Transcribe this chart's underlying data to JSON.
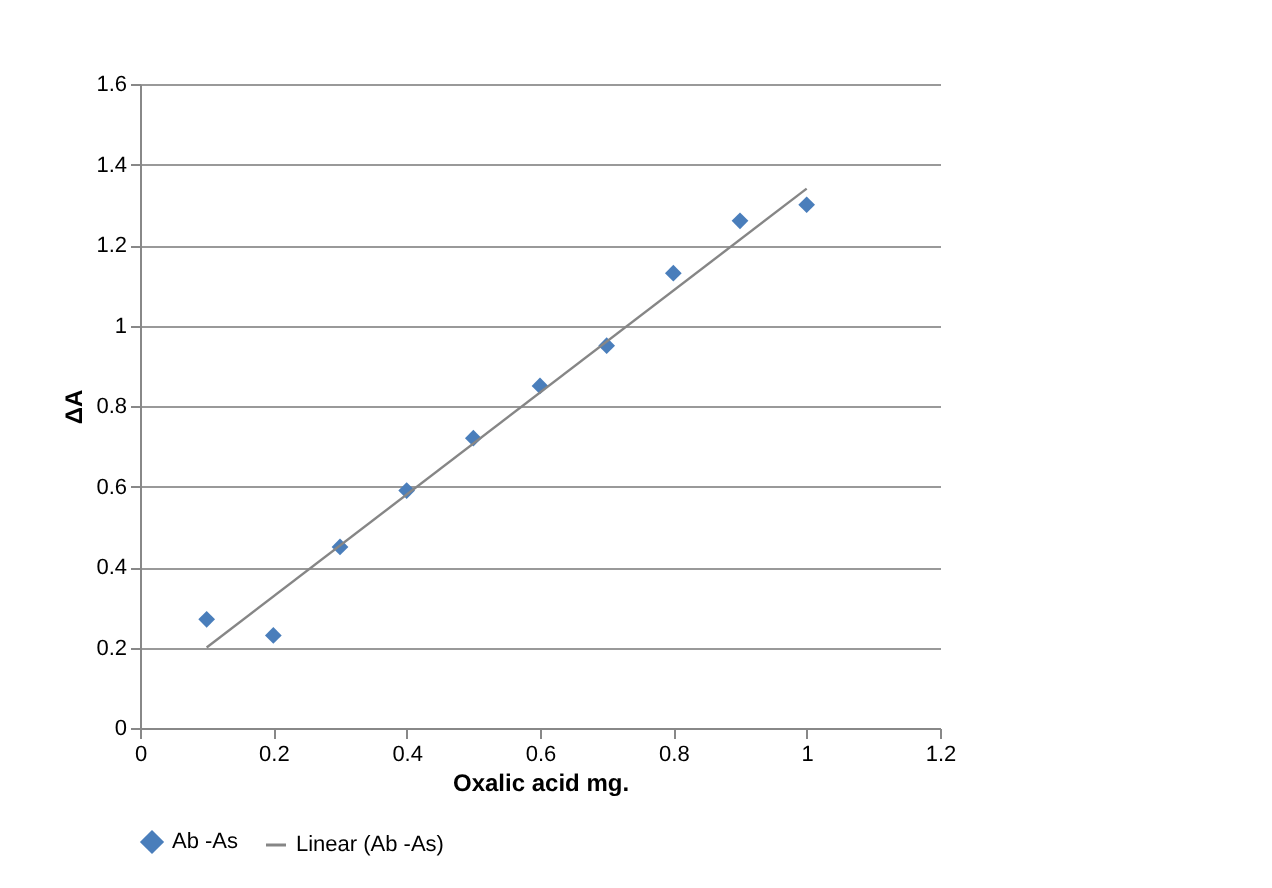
{
  "chart_data": {
    "type": "scatter",
    "xlabel": "Oxalic acid mg.",
    "ylabel": "ΔA",
    "xlim": [
      0,
      1.2
    ],
    "xticks": [
      0,
      0.2,
      0.4,
      0.6,
      0.8,
      1,
      1.2
    ],
    "ylim": [
      0,
      1.6
    ],
    "yticks": [
      0,
      0.2,
      0.4,
      0.6,
      0.8,
      1,
      1.2,
      1.4,
      1.6
    ],
    "grid": "y",
    "legend": "bottom",
    "series": [
      {
        "name": "Ab -As",
        "marker": "diamond",
        "color": "#4a7ebb",
        "x": [
          0.1,
          0.2,
          0.3,
          0.4,
          0.5,
          0.6,
          0.7,
          0.8,
          0.9,
          1.0
        ],
        "values": [
          0.27,
          0.23,
          0.45,
          0.59,
          0.72,
          0.85,
          0.95,
          1.13,
          1.26,
          1.3
        ]
      },
      {
        "name": "Linear (Ab -As)",
        "type": "line",
        "color": "#868686",
        "x": [
          0.1,
          1.0
        ],
        "values": [
          0.2,
          1.34
        ]
      }
    ]
  }
}
